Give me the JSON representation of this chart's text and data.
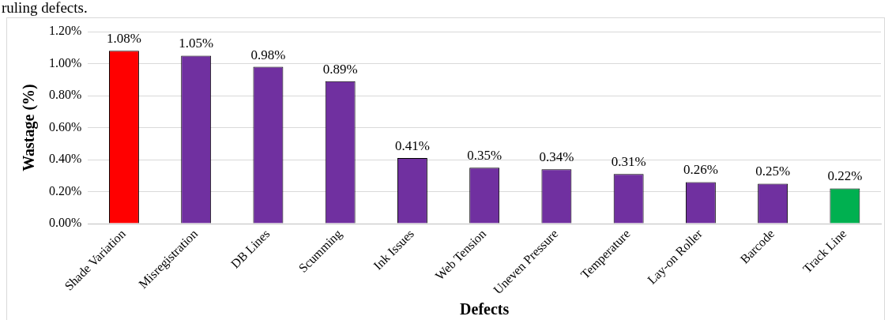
{
  "chart_data": {
    "type": "bar",
    "annotations": [
      "ruling defects."
    ],
    "xlabel": "Defects",
    "ylabel": "Wastage (%)",
    "categories": [
      "Shade Variation",
      "Misregistration",
      "DB Lines",
      "Scumming",
      "Ink Issues",
      "Web Tension",
      "Uneven Pressure",
      "Temperature",
      "Lay-on Roller",
      "Barcode",
      "Track Line"
    ],
    "values": [
      1.08,
      1.05,
      0.98,
      0.89,
      0.41,
      0.35,
      0.34,
      0.31,
      0.26,
      0.25,
      0.22
    ],
    "colors": [
      "#ff0000",
      "#7030a0",
      "#7030a0",
      "#7030a0",
      "#7030a0",
      "#7030a0",
      "#7030a0",
      "#7030a0",
      "#7030a0",
      "#7030a0",
      "#00b050"
    ],
    "value_labels": [
      "1.08%",
      "1.05%",
      "0.98%",
      "0.89%",
      "0.41%",
      "0.35%",
      "0.34%",
      "0.31%",
      "0.26%",
      "0.25%",
      "0.22%"
    ],
    "ylim": [
      0,
      1.2
    ],
    "yticks": [
      {
        "value": 0,
        "label": "0.00%"
      },
      {
        "value": 0.2,
        "label": "0.20%"
      },
      {
        "value": 0.4,
        "label": "0.40%"
      },
      {
        "value": 0.6,
        "label": "0.60%"
      },
      {
        "value": 0.8,
        "label": "0.80%"
      },
      {
        "value": 1.0,
        "label": "1.00%"
      },
      {
        "value": 1.2,
        "label": "1.20%"
      }
    ],
    "grid": "y",
    "legend": false
  }
}
